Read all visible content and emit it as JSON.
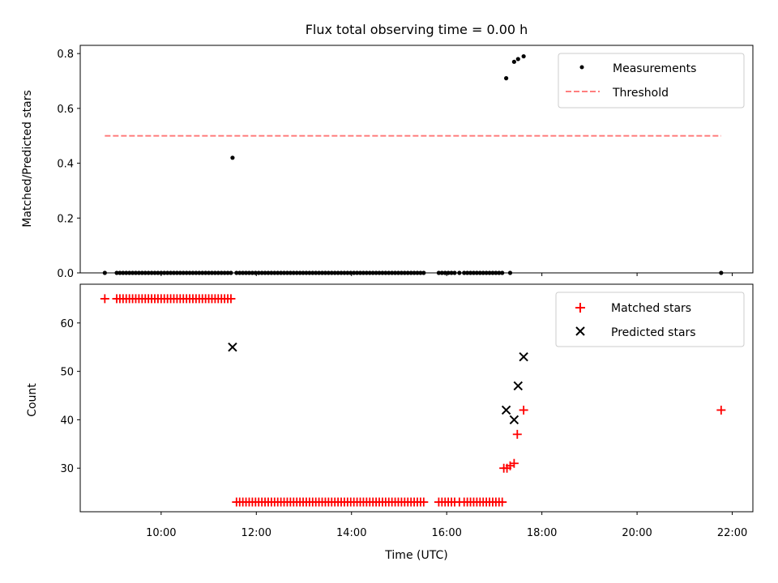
{
  "chart_data": [
    {
      "type": "scatter",
      "title": "Flux total observing time = 0.00 h",
      "xlabel": "",
      "ylabel": "Matched/Predicted stars",
      "xlim": [
        "08:18",
        "22:26"
      ],
      "ylim": [
        0.0,
        0.83
      ],
      "yticks": [
        0.0,
        0.2,
        0.4,
        0.6,
        0.8
      ],
      "ytick_labels": [
        "0.0",
        "0.2",
        "0.4",
        "0.6",
        "0.8"
      ],
      "legend_position": "upper right",
      "series": [
        {
          "name": "Measurements",
          "kind": "points",
          "color": "#000000",
          "points": [
            [
              "08:49",
              0.0
            ],
            [
              "09:04",
              0.0
            ],
            [
              "09:08",
              0.0
            ],
            [
              "09:12",
              0.0
            ],
            [
              "09:16",
              0.0
            ],
            [
              "09:20",
              0.0
            ],
            [
              "09:24",
              0.0
            ],
            [
              "09:28",
              0.0
            ],
            [
              "09:32",
              0.0
            ],
            [
              "09:36",
              0.0
            ],
            [
              "09:40",
              0.0
            ],
            [
              "09:44",
              0.0
            ],
            [
              "09:48",
              0.0
            ],
            [
              "09:52",
              0.0
            ],
            [
              "09:56",
              0.0
            ],
            [
              "10:00",
              0.0
            ],
            [
              "10:04",
              0.0
            ],
            [
              "10:08",
              0.0
            ],
            [
              "10:12",
              0.0
            ],
            [
              "10:16",
              0.0
            ],
            [
              "10:20",
              0.0
            ],
            [
              "10:24",
              0.0
            ],
            [
              "10:28",
              0.0
            ],
            [
              "10:32",
              0.0
            ],
            [
              "10:36",
              0.0
            ],
            [
              "10:40",
              0.0
            ],
            [
              "10:44",
              0.0
            ],
            [
              "10:48",
              0.0
            ],
            [
              "10:52",
              0.0
            ],
            [
              "10:56",
              0.0
            ],
            [
              "11:00",
              0.0
            ],
            [
              "11:04",
              0.0
            ],
            [
              "11:08",
              0.0
            ],
            [
              "11:12",
              0.0
            ],
            [
              "11:16",
              0.0
            ],
            [
              "11:20",
              0.0
            ],
            [
              "11:24",
              0.0
            ],
            [
              "11:28",
              0.0
            ],
            [
              "11:30",
              0.42
            ],
            [
              "11:35",
              0.0
            ],
            [
              "11:39",
              0.0
            ],
            [
              "11:43",
              0.0
            ],
            [
              "11:47",
              0.0
            ],
            [
              "11:51",
              0.0
            ],
            [
              "11:55",
              0.0
            ],
            [
              "11:59",
              0.0
            ],
            [
              "12:03",
              0.0
            ],
            [
              "12:07",
              0.0
            ],
            [
              "12:11",
              0.0
            ],
            [
              "12:15",
              0.0
            ],
            [
              "12:19",
              0.0
            ],
            [
              "12:23",
              0.0
            ],
            [
              "12:27",
              0.0
            ],
            [
              "12:31",
              0.0
            ],
            [
              "12:35",
              0.0
            ],
            [
              "12:39",
              0.0
            ],
            [
              "12:43",
              0.0
            ],
            [
              "12:47",
              0.0
            ],
            [
              "12:51",
              0.0
            ],
            [
              "12:55",
              0.0
            ],
            [
              "12:59",
              0.0
            ],
            [
              "13:03",
              0.0
            ],
            [
              "13:07",
              0.0
            ],
            [
              "13:11",
              0.0
            ],
            [
              "13:15",
              0.0
            ],
            [
              "13:19",
              0.0
            ],
            [
              "13:23",
              0.0
            ],
            [
              "13:27",
              0.0
            ],
            [
              "13:31",
              0.0
            ],
            [
              "13:35",
              0.0
            ],
            [
              "13:39",
              0.0
            ],
            [
              "13:43",
              0.0
            ],
            [
              "13:47",
              0.0
            ],
            [
              "13:51",
              0.0
            ],
            [
              "13:55",
              0.0
            ],
            [
              "13:59",
              0.0
            ],
            [
              "14:03",
              0.0
            ],
            [
              "14:07",
              0.0
            ],
            [
              "14:11",
              0.0
            ],
            [
              "14:15",
              0.0
            ],
            [
              "14:19",
              0.0
            ],
            [
              "14:23",
              0.0
            ],
            [
              "14:27",
              0.0
            ],
            [
              "14:31",
              0.0
            ],
            [
              "14:35",
              0.0
            ],
            [
              "14:39",
              0.0
            ],
            [
              "14:43",
              0.0
            ],
            [
              "14:47",
              0.0
            ],
            [
              "14:51",
              0.0
            ],
            [
              "14:55",
              0.0
            ],
            [
              "14:59",
              0.0
            ],
            [
              "15:03",
              0.0
            ],
            [
              "15:07",
              0.0
            ],
            [
              "15:11",
              0.0
            ],
            [
              "15:15",
              0.0
            ],
            [
              "15:19",
              0.0
            ],
            [
              "15:23",
              0.0
            ],
            [
              "15:27",
              0.0
            ],
            [
              "15:31",
              0.0
            ],
            [
              "15:50",
              0.0
            ],
            [
              "15:54",
              0.0
            ],
            [
              "15:58",
              0.0
            ],
            [
              "16:02",
              0.0
            ],
            [
              "16:06",
              0.0
            ],
            [
              "16:10",
              0.0
            ],
            [
              "16:16",
              0.0
            ],
            [
              "16:22",
              0.0
            ],
            [
              "16:26",
              0.0
            ],
            [
              "16:30",
              0.0
            ],
            [
              "16:34",
              0.0
            ],
            [
              "16:38",
              0.0
            ],
            [
              "16:42",
              0.0
            ],
            [
              "16:46",
              0.0
            ],
            [
              "16:50",
              0.0
            ],
            [
              "16:54",
              0.0
            ],
            [
              "16:58",
              0.0
            ],
            [
              "17:02",
              0.0
            ],
            [
              "17:06",
              0.0
            ],
            [
              "17:10",
              0.0
            ],
            [
              "17:15",
              0.71
            ],
            [
              "17:20",
              0.0
            ],
            [
              "17:25",
              0.77
            ],
            [
              "17:30",
              0.78
            ],
            [
              "17:37",
              0.79
            ],
            [
              "21:46",
              0.0
            ]
          ]
        },
        {
          "name": "Threshold",
          "kind": "dashed-line",
          "color": "#ff7f7f",
          "points": [
            [
              "08:49",
              0.5
            ],
            [
              "21:46",
              0.5
            ]
          ]
        }
      ]
    },
    {
      "type": "scatter",
      "title": "",
      "xlabel": "Time (UTC)",
      "ylabel": "Count",
      "xlim": [
        "08:18",
        "22:26"
      ],
      "ylim": [
        21,
        68
      ],
      "xticks": [
        "10:00",
        "12:00",
        "14:00",
        "16:00",
        "18:00",
        "20:00",
        "22:00"
      ],
      "yticks": [
        30,
        40,
        50,
        60
      ],
      "ytick_labels": [
        "30",
        "40",
        "50",
        "60"
      ],
      "legend_position": "upper right",
      "series": [
        {
          "name": "Matched stars",
          "kind": "plus",
          "color": "#ff0000",
          "points": [
            [
              "08:49",
              65
            ],
            [
              "09:04",
              65
            ],
            [
              "09:08",
              65
            ],
            [
              "09:12",
              65
            ],
            [
              "09:16",
              65
            ],
            [
              "09:20",
              65
            ],
            [
              "09:24",
              65
            ],
            [
              "09:28",
              65
            ],
            [
              "09:32",
              65
            ],
            [
              "09:36",
              65
            ],
            [
              "09:40",
              65
            ],
            [
              "09:44",
              65
            ],
            [
              "09:48",
              65
            ],
            [
              "09:52",
              65
            ],
            [
              "09:56",
              65
            ],
            [
              "10:00",
              65
            ],
            [
              "10:04",
              65
            ],
            [
              "10:08",
              65
            ],
            [
              "10:12",
              65
            ],
            [
              "10:16",
              65
            ],
            [
              "10:20",
              65
            ],
            [
              "10:24",
              65
            ],
            [
              "10:28",
              65
            ],
            [
              "10:32",
              65
            ],
            [
              "10:36",
              65
            ],
            [
              "10:40",
              65
            ],
            [
              "10:44",
              65
            ],
            [
              "10:48",
              65
            ],
            [
              "10:52",
              65
            ],
            [
              "10:56",
              65
            ],
            [
              "11:00",
              65
            ],
            [
              "11:04",
              65
            ],
            [
              "11:08",
              65
            ],
            [
              "11:12",
              65
            ],
            [
              "11:16",
              65
            ],
            [
              "11:20",
              65
            ],
            [
              "11:24",
              65
            ],
            [
              "11:28",
              65
            ],
            [
              "11:35",
              23
            ],
            [
              "11:39",
              23
            ],
            [
              "11:43",
              23
            ],
            [
              "11:47",
              23
            ],
            [
              "11:51",
              23
            ],
            [
              "11:55",
              23
            ],
            [
              "11:59",
              23
            ],
            [
              "12:03",
              23
            ],
            [
              "12:07",
              23
            ],
            [
              "12:11",
              23
            ],
            [
              "12:15",
              23
            ],
            [
              "12:19",
              23
            ],
            [
              "12:23",
              23
            ],
            [
              "12:27",
              23
            ],
            [
              "12:31",
              23
            ],
            [
              "12:35",
              23
            ],
            [
              "12:39",
              23
            ],
            [
              "12:43",
              23
            ],
            [
              "12:47",
              23
            ],
            [
              "12:51",
              23
            ],
            [
              "12:55",
              23
            ],
            [
              "12:59",
              23
            ],
            [
              "13:03",
              23
            ],
            [
              "13:07",
              23
            ],
            [
              "13:11",
              23
            ],
            [
              "13:15",
              23
            ],
            [
              "13:19",
              23
            ],
            [
              "13:23",
              23
            ],
            [
              "13:27",
              23
            ],
            [
              "13:31",
              23
            ],
            [
              "13:35",
              23
            ],
            [
              "13:39",
              23
            ],
            [
              "13:43",
              23
            ],
            [
              "13:47",
              23
            ],
            [
              "13:51",
              23
            ],
            [
              "13:55",
              23
            ],
            [
              "13:59",
              23
            ],
            [
              "14:03",
              23
            ],
            [
              "14:07",
              23
            ],
            [
              "14:11",
              23
            ],
            [
              "14:15",
              23
            ],
            [
              "14:19",
              23
            ],
            [
              "14:23",
              23
            ],
            [
              "14:27",
              23
            ],
            [
              "14:31",
              23
            ],
            [
              "14:35",
              23
            ],
            [
              "14:39",
              23
            ],
            [
              "14:43",
              23
            ],
            [
              "14:47",
              23
            ],
            [
              "14:51",
              23
            ],
            [
              "14:55",
              23
            ],
            [
              "14:59",
              23
            ],
            [
              "15:03",
              23
            ],
            [
              "15:07",
              23
            ],
            [
              "15:11",
              23
            ],
            [
              "15:15",
              23
            ],
            [
              "15:19",
              23
            ],
            [
              "15:23",
              23
            ],
            [
              "15:27",
              23
            ],
            [
              "15:31",
              23
            ],
            [
              "15:50",
              23
            ],
            [
              "15:54",
              23
            ],
            [
              "15:58",
              23
            ],
            [
              "16:02",
              23
            ],
            [
              "16:06",
              23
            ],
            [
              "16:10",
              23
            ],
            [
              "16:16",
              23
            ],
            [
              "16:22",
              23
            ],
            [
              "16:26",
              23
            ],
            [
              "16:30",
              23
            ],
            [
              "16:34",
              23
            ],
            [
              "16:38",
              23
            ],
            [
              "16:42",
              23
            ],
            [
              "16:46",
              23
            ],
            [
              "16:50",
              23
            ],
            [
              "16:54",
              23
            ],
            [
              "16:58",
              23
            ],
            [
              "17:02",
              23
            ],
            [
              "17:06",
              23
            ],
            [
              "17:10",
              23
            ],
            [
              "17:12",
              30
            ],
            [
              "17:16",
              30
            ],
            [
              "17:20",
              30.5
            ],
            [
              "17:25",
              31
            ],
            [
              "17:29",
              37
            ],
            [
              "17:37",
              42
            ],
            [
              "21:46",
              42
            ]
          ]
        },
        {
          "name": "Predicted stars",
          "kind": "x",
          "color": "#000000",
          "points": [
            [
              "11:30",
              55
            ],
            [
              "17:15",
              42
            ],
            [
              "17:25",
              40
            ],
            [
              "17:30",
              47
            ],
            [
              "17:37",
              53
            ]
          ]
        }
      ]
    }
  ]
}
